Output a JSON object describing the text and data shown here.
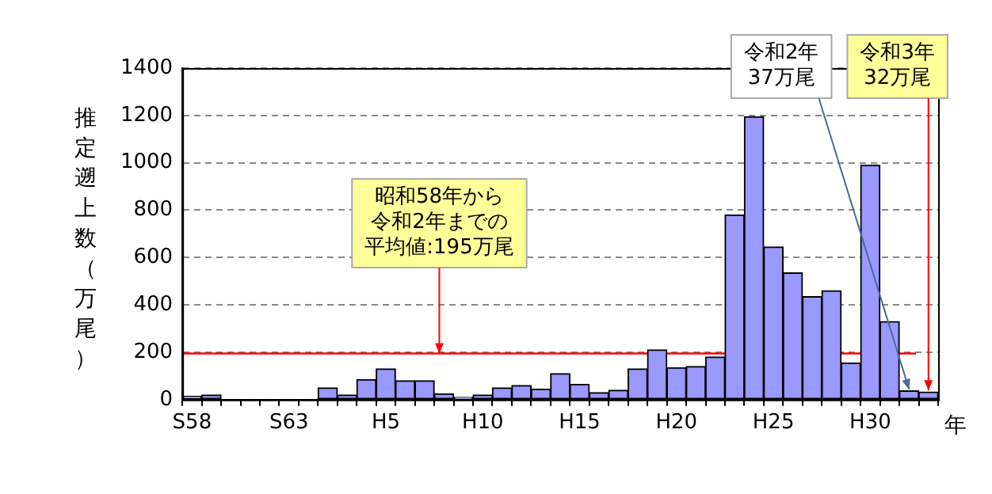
{
  "chart_data": {
    "type": "bar",
    "categories": [
      "S58",
      null,
      null,
      null,
      null,
      "S63",
      null,
      null,
      null,
      null,
      "H5",
      null,
      null,
      null,
      null,
      "H10",
      null,
      null,
      null,
      null,
      "H15",
      null,
      null,
      null,
      null,
      "H20",
      null,
      null,
      null,
      null,
      "H25",
      null,
      null,
      null,
      null,
      "H30",
      null,
      null,
      null
    ],
    "values": [
      15,
      20,
      null,
      null,
      null,
      null,
      null,
      50,
      20,
      85,
      130,
      80,
      80,
      25,
      10,
      20,
      50,
      60,
      45,
      110,
      65,
      30,
      40,
      130,
      210,
      135,
      140,
      180,
      780,
      1195,
      645,
      535,
      435,
      460,
      155,
      990,
      330,
      37,
      32
    ],
    "value_labels": [
      null,
      null,
      null,
      null,
      null,
      null,
      null,
      null,
      null,
      null,
      null,
      null,
      null,
      null,
      null,
      null,
      null,
      null,
      null,
      null,
      null,
      null,
      null,
      null,
      null,
      null,
      null,
      null,
      null,
      null,
      null,
      null,
      null,
      null,
      null,
      null,
      null,
      "令和2年\n37万尾",
      "令和3年\n32万尾"
    ],
    "color": "#9999ff",
    "ylabel": "推定遡上数（万尾）",
    "xlabel": "年",
    "ylim": [
      0,
      1400
    ],
    "yticks": [
      0,
      200,
      400,
      600,
      800,
      1000,
      1200,
      1400
    ],
    "grid": "y",
    "legend": false,
    "ref_lines": [
      {
        "axis": "y",
        "value": 195,
        "label": "昭和58年から令和2年までの平均値:195万尾",
        "color": "#ff0000"
      }
    ]
  }
}
